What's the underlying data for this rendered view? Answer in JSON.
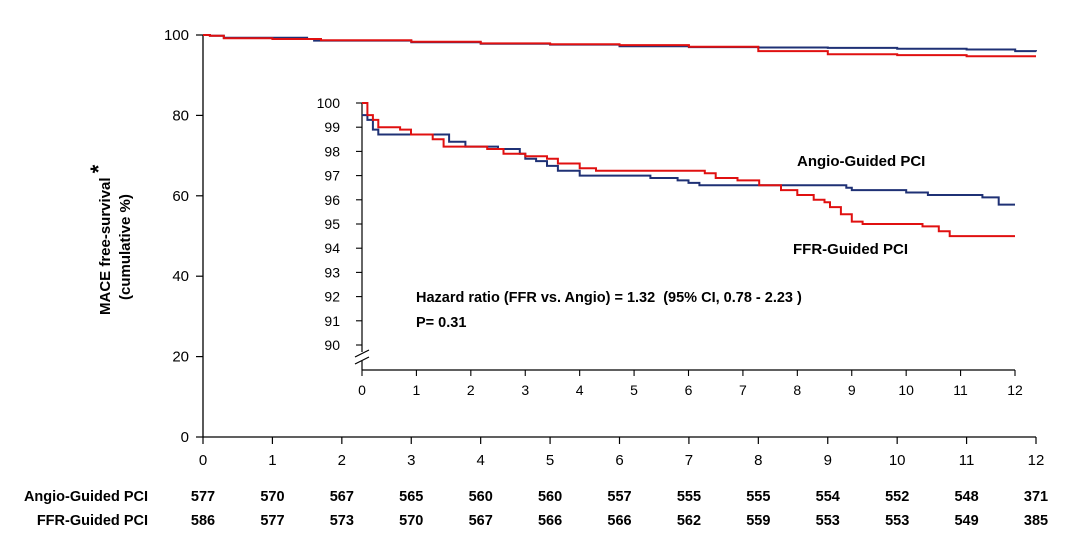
{
  "chart_data": {
    "type": "line",
    "subtype": "kaplan-meier",
    "ylabel_line1": "MACE free-survival",
    "ylabel_star": "*",
    "ylabel_line2": "(cumulative %)",
    "main": {
      "xlim": [
        0,
        12
      ],
      "ylim": [
        0,
        100
      ],
      "x_ticks": [
        "0",
        "1",
        "2",
        "3",
        "4",
        "5",
        "6",
        "7",
        "8",
        "9",
        "10",
        "11",
        "12"
      ],
      "y_ticks": [
        "0",
        "20",
        "40",
        "60",
        "80",
        "100"
      ],
      "series": [
        {
          "name": "Angio-Guided PCI",
          "color": "#1f3175",
          "points": [
            [
              0,
              100
            ],
            [
              0.1,
              99.8
            ],
            [
              0.3,
              99.3
            ],
            [
              1.5,
              99.0
            ],
            [
              1.6,
              98.6
            ],
            [
              3,
              98.2
            ],
            [
              4,
              97.8
            ],
            [
              5,
              97.6
            ],
            [
              6,
              97.2
            ],
            [
              7,
              97.0
            ],
            [
              8,
              96.9
            ],
            [
              9,
              96.8
            ],
            [
              10,
              96.6
            ],
            [
              11,
              96.4
            ],
            [
              11.7,
              96.0
            ],
            [
              12,
              95.9
            ]
          ]
        },
        {
          "name": "FFR-Guided PCI",
          "color": "#e01010",
          "points": [
            [
              0,
              100
            ],
            [
              0.1,
              99.8
            ],
            [
              0.3,
              99.2
            ],
            [
              1,
              99.0
            ],
            [
              1.7,
              98.7
            ],
            [
              3,
              98.3
            ],
            [
              4,
              97.9
            ],
            [
              5,
              97.7
            ],
            [
              6,
              97.5
            ],
            [
              7,
              97.1
            ],
            [
              8,
              96.0
            ],
            [
              9,
              95.2
            ],
            [
              10,
              95.0
            ],
            [
              11,
              94.7
            ],
            [
              12,
              94.7
            ]
          ]
        }
      ]
    },
    "inset": {
      "xlim": [
        0,
        12
      ],
      "ylim": [
        90,
        100
      ],
      "x_ticks": [
        "0",
        "1",
        "2",
        "3",
        "4",
        "5",
        "6",
        "7",
        "8",
        "9",
        "10",
        "11",
        "12"
      ],
      "y_ticks": [
        "90",
        "91",
        "92",
        "93",
        "94",
        "95",
        "96",
        "97",
        "98",
        "99",
        "100"
      ],
      "series": [
        {
          "name": "Angio-Guided PCI",
          "color": "#1f3175",
          "points": [
            [
              0,
              99.5
            ],
            [
              0.1,
              99.3
            ],
            [
              0.2,
              98.9
            ],
            [
              0.3,
              98.7
            ],
            [
              1.0,
              98.7
            ],
            [
              1.6,
              98.4
            ],
            [
              1.9,
              98.2
            ],
            [
              2.3,
              98.2
            ],
            [
              2.5,
              98.1
            ],
            [
              2.9,
              97.9
            ],
            [
              3.0,
              97.7
            ],
            [
              3.2,
              97.6
            ],
            [
              3.4,
              97.4
            ],
            [
              3.6,
              97.2
            ],
            [
              4.0,
              97.0
            ],
            [
              5.0,
              97.0
            ],
            [
              5.3,
              96.9
            ],
            [
              5.8,
              96.8
            ],
            [
              6.0,
              96.7
            ],
            [
              6.2,
              96.6
            ],
            [
              7.0,
              96.6
            ],
            [
              8.5,
              96.6
            ],
            [
              8.9,
              96.5
            ],
            [
              9.0,
              96.4
            ],
            [
              10.0,
              96.3
            ],
            [
              10.4,
              96.2
            ],
            [
              11.0,
              96.2
            ],
            [
              11.4,
              96.1
            ],
            [
              11.7,
              95.8
            ],
            [
              12.0,
              95.8
            ]
          ]
        },
        {
          "name": "FFR-Guided PCI",
          "color": "#e01010",
          "points": [
            [
              0,
              100
            ],
            [
              0.1,
              99.5
            ],
            [
              0.2,
              99.3
            ],
            [
              0.3,
              99.0
            ],
            [
              0.7,
              98.9
            ],
            [
              0.9,
              98.7
            ],
            [
              1.3,
              98.5
            ],
            [
              1.5,
              98.2
            ],
            [
              2.3,
              98.1
            ],
            [
              2.6,
              97.9
            ],
            [
              3.0,
              97.8
            ],
            [
              3.4,
              97.7
            ],
            [
              3.6,
              97.5
            ],
            [
              4.0,
              97.3
            ],
            [
              4.3,
              97.2
            ],
            [
              6.0,
              97.2
            ],
            [
              6.3,
              97.1
            ],
            [
              6.5,
              96.9
            ],
            [
              6.9,
              96.8
            ],
            [
              7.3,
              96.6
            ],
            [
              7.7,
              96.4
            ],
            [
              8.0,
              96.2
            ],
            [
              8.3,
              96.0
            ],
            [
              8.5,
              95.9
            ],
            [
              8.6,
              95.7
            ],
            [
              8.8,
              95.4
            ],
            [
              9.0,
              95.1
            ],
            [
              9.2,
              95.0
            ],
            [
              10.0,
              95.0
            ],
            [
              10.3,
              94.9
            ],
            [
              10.6,
              94.7
            ],
            [
              10.8,
              94.5
            ],
            [
              11.0,
              94.5
            ],
            [
              12.0,
              94.5
            ]
          ]
        }
      ]
    },
    "legend_labels": [
      "Angio-Guided PCI",
      "FFR-Guided PCI"
    ],
    "hazard_text": "Hazard ratio (FFR vs. Angio) = 1.32  (95% CI, 0.78 - 2.23 )",
    "p_text": "P= 0.31",
    "risk_table": [
      {
        "label": "Angio-Guided PCI",
        "values": [
          "577",
          "570",
          "567",
          "565",
          "560",
          "560",
          "557",
          "555",
          "555",
          "554",
          "552",
          "548",
          "371"
        ]
      },
      {
        "label": "FFR-Guided PCI",
        "values": [
          "586",
          "577",
          "573",
          "570",
          "567",
          "566",
          "566",
          "562",
          "559",
          "553",
          "553",
          "549",
          "385"
        ]
      }
    ]
  }
}
